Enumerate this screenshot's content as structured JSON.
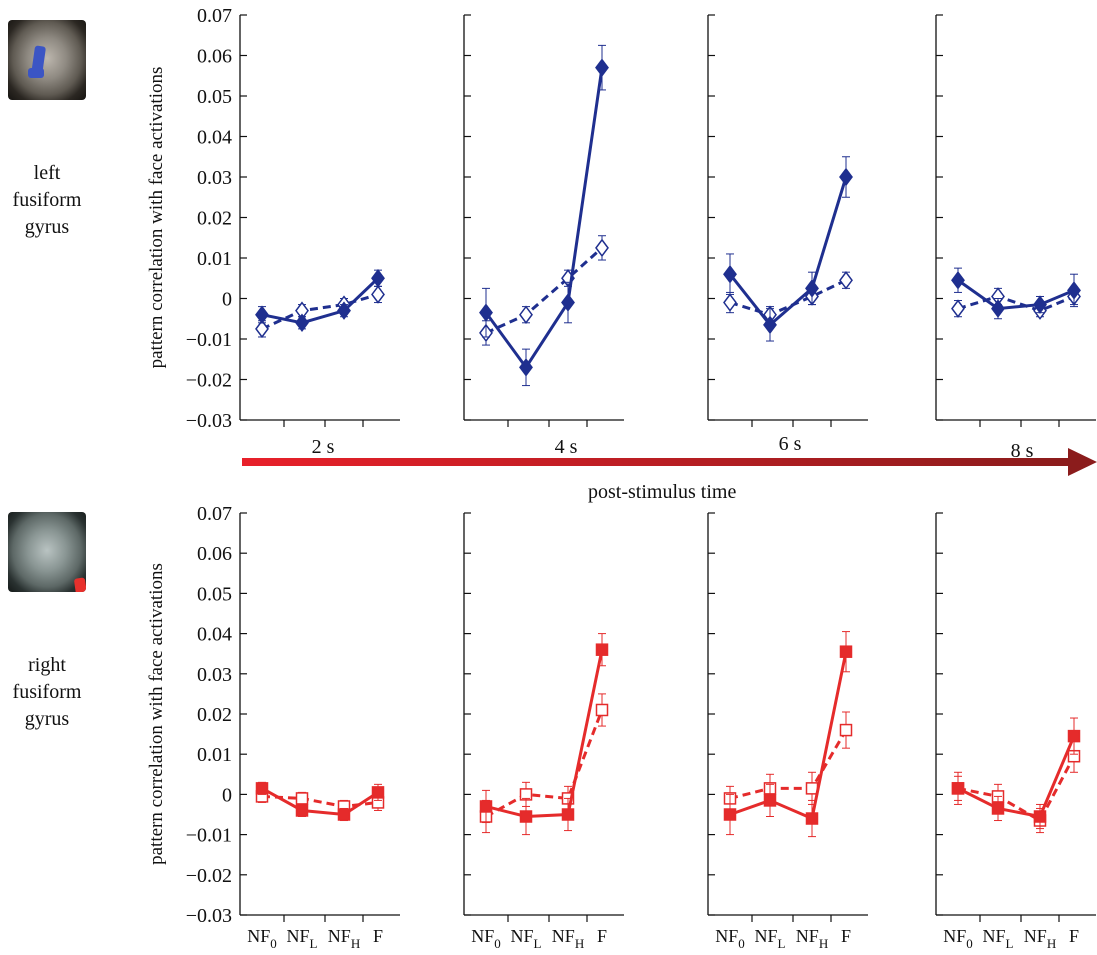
{
  "figure": {
    "arrow_label": "post-stimulus time",
    "time_labels": [
      "2 s",
      "4 s",
      "6 s",
      "8 s"
    ],
    "regions": [
      {
        "label_lines": [
          "left",
          "fusiform",
          "gyrus"
        ],
        "image_icon": "brain-mri-left-roi-icon",
        "roi_color": "#3b55c4"
      },
      {
        "label_lines": [
          "right",
          "fusiform",
          "gyrus"
        ],
        "image_icon": "brain-mri-right-roi-icon",
        "roi_color": "#e8302c"
      }
    ],
    "colors": {
      "blue": "#1f2f8f",
      "red": "#e52b2b",
      "arrow_start": "#e8202a",
      "arrow_end": "#8b1c1c"
    }
  },
  "chart_data": [
    {
      "type": "line",
      "region": "left fusiform gyrus",
      "ylabel": "pattern correlation with face activations",
      "ylim": [
        -0.03,
        0.07
      ],
      "yticks": [
        "0.07",
        "0.06",
        "0.05",
        "0.04",
        "0.03",
        "0.02",
        "0.01",
        "0",
        "-0.01",
        "-0.02",
        "-0.03"
      ],
      "categories": [
        "NF0",
        "NFL",
        "NFH",
        "F"
      ],
      "color": "#1f2f8f",
      "marker": "diamond",
      "panels": [
        {
          "time": "2 s",
          "series": [
            {
              "style": "solid",
              "values": [
                -0.004,
                -0.006,
                -0.003,
                0.005
              ],
              "errors": [
                0.002,
                0.0015,
                0.0015,
                0.002
              ]
            },
            {
              "style": "dashed",
              "values": [
                -0.0075,
                -0.003,
                -0.0015,
                0.001
              ],
              "errors": [
                0.002,
                0.0015,
                0.0015,
                0.002
              ]
            }
          ]
        },
        {
          "time": "4 s",
          "series": [
            {
              "style": "solid",
              "values": [
                -0.0035,
                -0.017,
                -0.001,
                0.057
              ],
              "errors": [
                0.006,
                0.0045,
                0.005,
                0.0055
              ]
            },
            {
              "style": "dashed",
              "values": [
                -0.0085,
                -0.004,
                0.005,
                0.0125
              ],
              "errors": [
                0.003,
                0.002,
                0.002,
                0.003
              ]
            }
          ]
        },
        {
          "time": "6 s",
          "series": [
            {
              "style": "solid",
              "values": [
                0.006,
                -0.0065,
                0.0025,
                0.03
              ],
              "errors": [
                0.005,
                0.004,
                0.004,
                0.005
              ]
            },
            {
              "style": "dashed",
              "values": [
                -0.001,
                -0.004,
                0.0005,
                0.0045
              ],
              "errors": [
                0.0025,
                0.002,
                0.002,
                0.002
              ]
            }
          ]
        },
        {
          "time": "8 s",
          "series": [
            {
              "style": "solid",
              "values": [
                0.0045,
                -0.0025,
                -0.0015,
                0.002
              ],
              "errors": [
                0.003,
                0.0025,
                0.002,
                0.004
              ]
            },
            {
              "style": "dashed",
              "values": [
                -0.0025,
                0.0005,
                -0.003,
                0.0005
              ],
              "errors": [
                0.002,
                0.002,
                0.0015,
                0.002
              ]
            }
          ]
        }
      ]
    },
    {
      "type": "line",
      "region": "right fusiform gyrus",
      "ylabel": "pattern correlation with face activations",
      "ylim": [
        -0.03,
        0.07
      ],
      "yticks": [
        "0.07",
        "0.06",
        "0.05",
        "0.04",
        "0.03",
        "0.02",
        "0.01",
        "0",
        "-0.01",
        "-0.02",
        "-0.03"
      ],
      "categories": [
        "NF0",
        "NFL",
        "NFH",
        "F"
      ],
      "color": "#e52b2b",
      "marker": "square",
      "panels": [
        {
          "time": "2 s",
          "series": [
            {
              "style": "solid",
              "values": [
                0.0015,
                -0.004,
                -0.005,
                0.0005
              ],
              "errors": [
                0.0015,
                0.0015,
                0.0015,
                0.002
              ]
            },
            {
              "style": "dashed",
              "values": [
                -0.0005,
                -0.001,
                -0.003,
                -0.002
              ],
              "errors": [
                0.0015,
                0.0015,
                0.0015,
                0.002
              ]
            }
          ]
        },
        {
          "time": "4 s",
          "series": [
            {
              "style": "solid",
              "values": [
                -0.003,
                -0.0055,
                -0.005,
                0.036
              ],
              "errors": [
                0.004,
                0.0045,
                0.004,
                0.004
              ]
            },
            {
              "style": "dashed",
              "values": [
                -0.0055,
                0.0,
                -0.001,
                0.021
              ],
              "errors": [
                0.004,
                0.003,
                0.003,
                0.004
              ]
            }
          ]
        },
        {
          "time": "6 s",
          "series": [
            {
              "style": "solid",
              "values": [
                -0.005,
                -0.0015,
                -0.006,
                0.0355
              ],
              "errors": [
                0.005,
                0.004,
                0.0045,
                0.005
              ]
            },
            {
              "style": "dashed",
              "values": [
                -0.001,
                0.0015,
                0.0015,
                0.016
              ],
              "errors": [
                0.003,
                0.0035,
                0.004,
                0.0045
              ]
            }
          ]
        },
        {
          "time": "8 s",
          "series": [
            {
              "style": "solid",
              "values": [
                0.0015,
                -0.0035,
                -0.0055,
                0.0145
              ],
              "errors": [
                0.004,
                0.003,
                0.003,
                0.0045
              ]
            },
            {
              "style": "dashed",
              "values": [
                0.0015,
                -0.0005,
                -0.0065,
                0.0095
              ],
              "errors": [
                0.003,
                0.003,
                0.003,
                0.004
              ]
            }
          ]
        }
      ]
    }
  ]
}
